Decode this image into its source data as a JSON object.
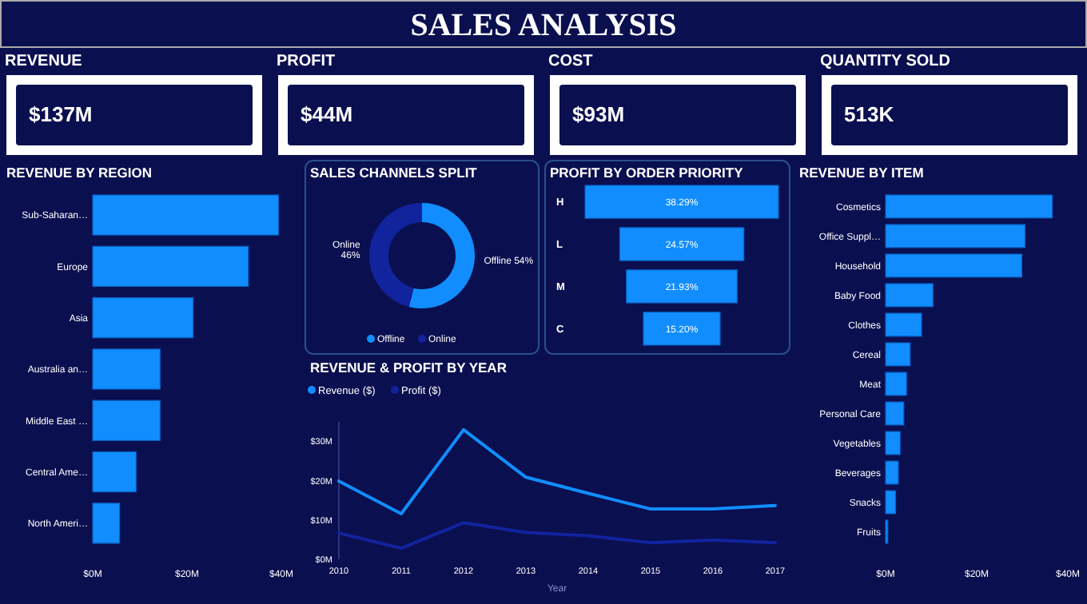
{
  "chart_data": [
    {
      "type": "other",
      "title": "SALES ANALYSIS",
      "categories": [
        "REVENUE",
        "PROFIT",
        "COST",
        "QUANTITY SOLD"
      ],
      "annotations": [
        "$137M",
        "$44M",
        "$93M",
        "513K"
      ]
    },
    {
      "type": "bar",
      "orientation": "horizontal",
      "title": "REVENUE BY REGION",
      "categories": [
        "Sub-Saharan…",
        "Europe",
        "Asia",
        "Australia an…",
        "Middle East …",
        "Central Ame…",
        "North Ameri…"
      ],
      "values": [
        39.4,
        33.0,
        21.3,
        14.3,
        14.3,
        9.2,
        5.7
      ],
      "color": "#118dff",
      "xlim": [
        0,
        40
      ],
      "xticks": [
        {
          "value": 0,
          "label": "$0M"
        },
        {
          "value": 20,
          "label": "$20M"
        },
        {
          "value": 40,
          "label": "$40M"
        }
      ]
    },
    {
      "type": "donut",
      "title": "SALES CHANNELS SPLIT",
      "categories": [
        "Offline",
        "Online"
      ],
      "values": [
        54,
        46
      ],
      "colors": [
        "#118dff",
        "#12239e"
      ],
      "value_labels": [
        "Offline 54%",
        "Online 46%"
      ],
      "legend": "bottom"
    },
    {
      "type": "other",
      "title": "PROFIT BY ORDER PRIORITY",
      "categories": [
        "H",
        "L",
        "M",
        "C"
      ],
      "values": [
        38.29,
        24.57,
        21.93,
        15.2
      ],
      "color": "#118dff",
      "value_labels": [
        "38.29%",
        "24.57%",
        "21.93%",
        "15.20%"
      ]
    },
    {
      "type": "line",
      "title": "REVENUE & PROFIT BY YEAR",
      "xlabel": "Year",
      "x": [
        2010,
        2011,
        2012,
        2013,
        2014,
        2015,
        2016,
        2017
      ],
      "xlim": [
        2010,
        2017
      ],
      "xticks": [
        2010,
        2011,
        2012,
        2013,
        2014,
        2015,
        2016,
        2017
      ],
      "ylim": [
        0,
        35
      ],
      "yticks": [
        {
          "value": 0,
          "label": "$0M"
        },
        {
          "value": 10,
          "label": "$10M"
        },
        {
          "value": 20,
          "label": "$20M"
        },
        {
          "value": 30,
          "label": "$30M"
        }
      ],
      "legend": "top left",
      "series": [
        {
          "name": "Revenue ($)",
          "color": "#118dff",
          "values": [
            19.9,
            11.6,
            33.0,
            20.9,
            16.8,
            12.8,
            12.8,
            13.7
          ]
        },
        {
          "name": "Profit ($)",
          "color": "#12239e",
          "values": [
            6.7,
            2.8,
            9.3,
            6.8,
            6.0,
            4.2,
            4.9,
            4.2
          ]
        }
      ]
    },
    {
      "type": "bar",
      "orientation": "horizontal",
      "title": "REVENUE BY ITEM",
      "categories": [
        "Cosmetics",
        "Office Suppl…",
        "Household",
        "Baby Food",
        "Clothes",
        "Cereal",
        "Meat",
        "Personal Care",
        "Vegetables",
        "Beverages",
        "Snacks",
        "Fruits"
      ],
      "values": [
        36.6,
        30.6,
        29.9,
        10.4,
        7.9,
        5.4,
        4.6,
        4.0,
        3.2,
        2.8,
        2.2,
        0.5
      ],
      "color": "#118dff",
      "xlim": [
        0,
        40
      ],
      "xticks": [
        {
          "value": 0,
          "label": "$0M"
        },
        {
          "value": 20,
          "label": "$20M"
        },
        {
          "value": 40,
          "label": "$40M"
        }
      ]
    }
  ]
}
